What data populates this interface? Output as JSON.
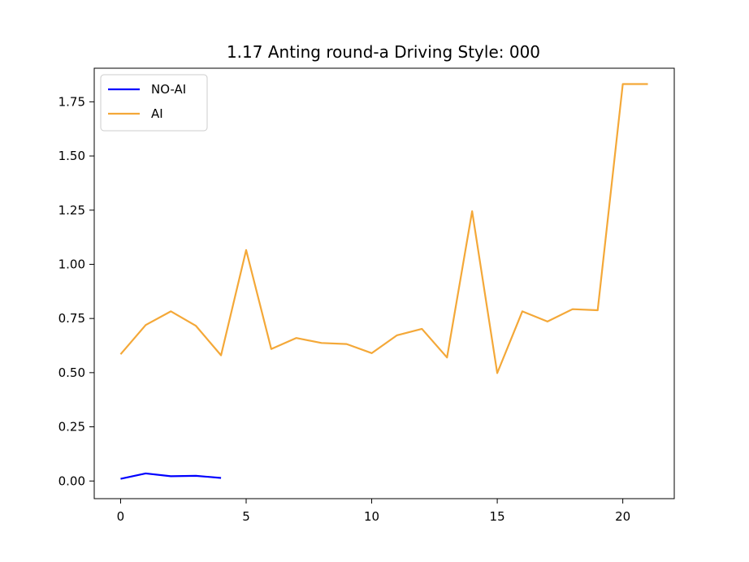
{
  "chart_data": {
    "type": "line",
    "title": "1.17 Anting round-a Driving Style: 000",
    "xlabel": "",
    "ylabel": "",
    "xlim": [
      -1.05,
      22.05
    ],
    "ylim": [
      -0.0815,
      1.905
    ],
    "x_ticks": [
      0,
      5,
      10,
      15,
      20
    ],
    "y_ticks": [
      0.0,
      0.25,
      0.5,
      0.75,
      1.0,
      1.25,
      1.5,
      1.75
    ],
    "x_tick_labels": [
      "0",
      "5",
      "10",
      "15",
      "20"
    ],
    "y_tick_labels": [
      "0.00",
      "0.25",
      "0.50",
      "0.75",
      "1.00",
      "1.25",
      "1.50",
      "1.75"
    ],
    "grid": false,
    "legend_position": "upper-left",
    "series": [
      {
        "name": "NO-AI",
        "color": "#0000ff",
        "x": [
          0,
          1,
          2,
          3,
          4
        ],
        "y": [
          0.01,
          0.035,
          0.022,
          0.024,
          0.014
        ]
      },
      {
        "name": "AI",
        "color": "#f4a838",
        "x": [
          0,
          1,
          2,
          3,
          4,
          5,
          6,
          7,
          8,
          9,
          10,
          11,
          12,
          13,
          14,
          15,
          16,
          17,
          18,
          19,
          20,
          21
        ],
        "y": [
          0.585,
          0.72,
          0.783,
          0.716,
          0.58,
          1.066,
          0.609,
          0.66,
          0.637,
          0.632,
          0.59,
          0.672,
          0.702,
          0.57,
          1.245,
          0.498,
          0.783,
          0.736,
          0.793,
          0.788,
          1.832,
          1.832
        ]
      }
    ]
  }
}
